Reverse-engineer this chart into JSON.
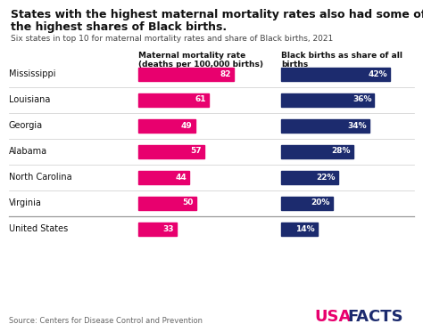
{
  "title_line1": "States with the highest maternal mortality rates also had some of",
  "title_line2": "the highest shares of Black births.",
  "subtitle": "Six states in top 10 for maternal mortality rates and share of Black births, 2021",
  "states": [
    "Mississippi",
    "Louisiana",
    "Georgia",
    "Alabama",
    "North Carolina",
    "Virginia",
    "United States"
  ],
  "mortality_values": [
    82,
    61,
    49,
    57,
    44,
    50,
    33
  ],
  "birth_share_values": [
    42,
    36,
    34,
    28,
    22,
    20,
    14
  ],
  "mortality_color": "#E8006E",
  "birth_color": "#1C2B6E",
  "background_color": "#FFFFFF",
  "col1_header_line1": "Maternal mortality rate",
  "col1_header_line2": "(deaths per 100,000 births)",
  "col2_header_line1": "Black births as share of all",
  "col2_header_line2": "births",
  "source_text": "Source: Centers for Disease Control and Prevention",
  "brand_usa": "USA",
  "brand_facts": "FACTS",
  "brand_color_usa": "#E8006E",
  "brand_color_facts": "#1C2B6E",
  "mortality_scale_max": 100,
  "birth_scale_max": 50,
  "text_color": "#111111",
  "subtitle_color": "#444444",
  "separator_color": "#CCCCCC",
  "separator_heavy_color": "#999999"
}
